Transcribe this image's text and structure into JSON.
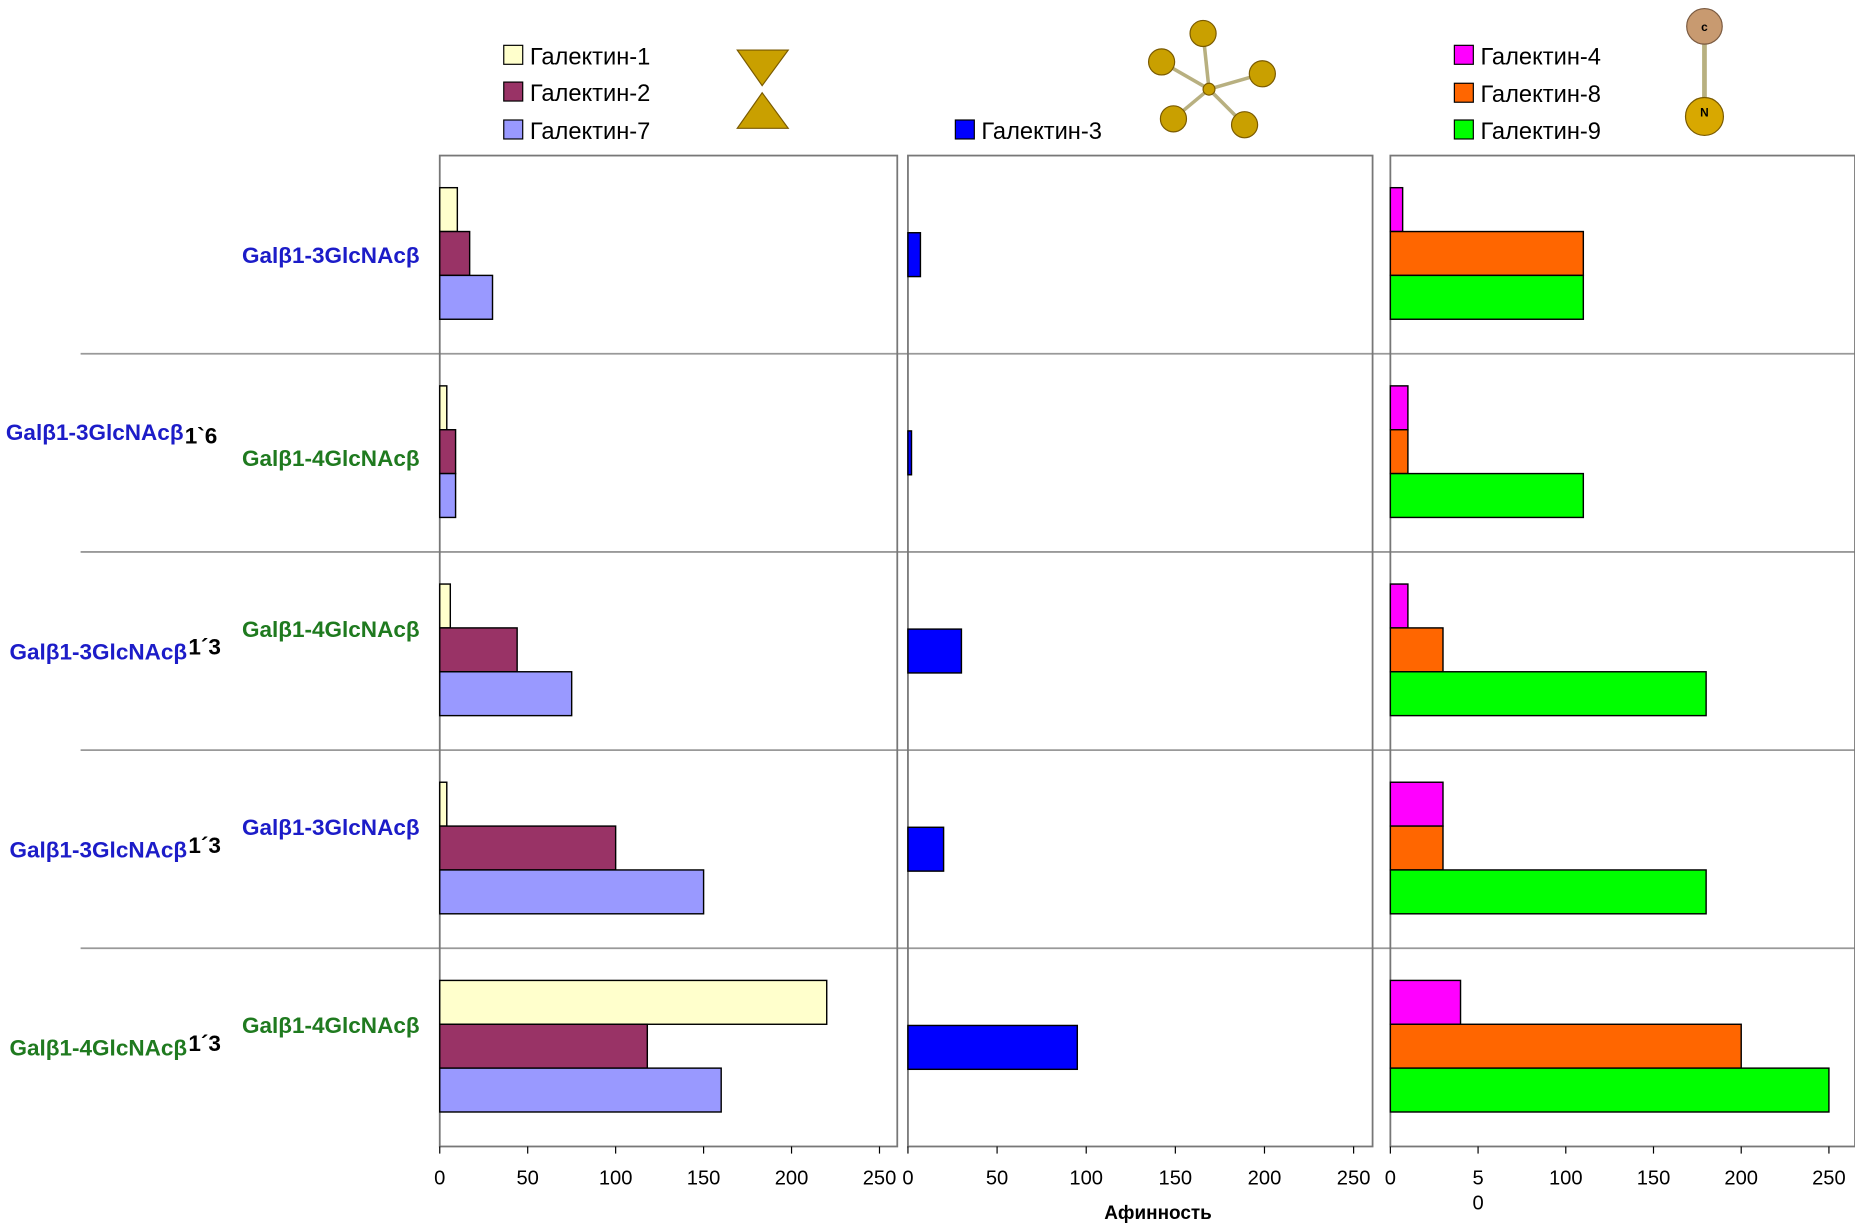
{
  "chart_data": [
    {
      "type": "bar",
      "orientation": "horizontal",
      "categories": [
        {
          "right": "Galβ1-3GlcNAcβ",
          "right_color": "#1c1cc8"
        },
        {
          "left": "Galβ1-3GlcNAcβ",
          "left_color": "#1c1cc8",
          "link": "1`6",
          "link_pos": "low",
          "right": "Galβ1-4GlcNAcβ",
          "right_color": "#1f7a1f"
        },
        {
          "left": "Galβ1-3GlcNAcβ",
          "left_color": "#1c1cc8",
          "link": "1´3",
          "link_pos": "high",
          "right": "Galβ1-4GlcNAcβ",
          "right_color": "#1f7a1f"
        },
        {
          "left": "Galβ1-3GlcNAcβ",
          "left_color": "#1c1cc8",
          "link": "1´3",
          "link_pos": "high",
          "right": "Galβ1-3GlcNAcβ",
          "right_color": "#1c1cc8"
        },
        {
          "left": "Galβ1-4GlcNAcβ",
          "left_color": "#1f7a1f",
          "link": "1´3",
          "link_pos": "high",
          "right": "Galβ1-4GlcNAcβ",
          "right_color": "#1f7a1f"
        }
      ],
      "series": [
        {
          "name": "Галектин-1",
          "color": "#ffffcc",
          "values": [
            10,
            4,
            6,
            4,
            220
          ]
        },
        {
          "name": "Галектин-2",
          "color": "#993366",
          "values": [
            17,
            9,
            44,
            100,
            118
          ]
        },
        {
          "name": "Галектин-7",
          "color": "#9999ff",
          "values": [
            30,
            9,
            75,
            150,
            160
          ]
        }
      ],
      "xlim": [
        0,
        250
      ],
      "xticks": [
        0,
        50,
        100,
        150,
        200,
        250
      ]
    },
    {
      "type": "bar",
      "orientation": "horizontal",
      "xlabel": "Афинность",
      "series": [
        {
          "name": "Галектин-3",
          "color": "#0000ff",
          "values": [
            7,
            2,
            30,
            20,
            95
          ]
        }
      ],
      "xlim": [
        0,
        250
      ],
      "xticks": [
        0,
        50,
        100,
        150,
        200,
        250
      ]
    },
    {
      "type": "bar",
      "orientation": "horizontal",
      "series": [
        {
          "name": "Галектин-4",
          "color": "#ff00ff",
          "values": [
            7,
            10,
            10,
            30,
            40
          ]
        },
        {
          "name": "Галектин-8",
          "color": "#ff6600",
          "values": [
            110,
            10,
            30,
            30,
            200
          ]
        },
        {
          "name": "Галектин-9",
          "color": "#00ff00",
          "values": [
            110,
            110,
            180,
            180,
            250
          ]
        }
      ],
      "xlim": [
        0,
        250
      ],
      "xticks": [
        0,
        {
          "value": 50,
          "label": "5\n0"
        },
        100,
        150,
        200,
        250
      ]
    }
  ]
}
